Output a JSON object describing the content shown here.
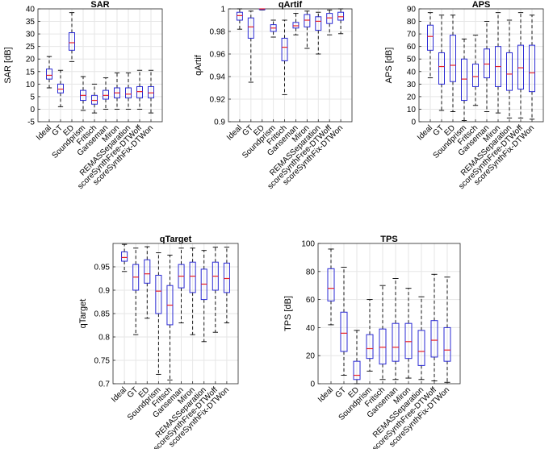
{
  "chart_data": [
    {
      "type": "box",
      "title": "SAR",
      "xlabel": "",
      "ylabel": "SAR [dB]",
      "ylim": [
        -5,
        40
      ],
      "yticks": [
        -5,
        0,
        5,
        10,
        15,
        20,
        25,
        30,
        35,
        40
      ],
      "categories": [
        "Ideal",
        "GT",
        "ED",
        "Soundprism",
        "Fritsch",
        "Ganseman",
        "Miron",
        "REMASSeparation",
        "scoreSynthFree-DTWoff",
        "scoreSynthFix-DTWon"
      ],
      "boxes": [
        {
          "min": 8.5,
          "q1": 12,
          "median": 13.5,
          "q3": 16,
          "max": 21
        },
        {
          "min": 1,
          "q1": 6.5,
          "median": 8,
          "q3": 10,
          "max": 15.5
        },
        {
          "min": 19,
          "q1": 23.5,
          "median": 26.5,
          "q3": 30.5,
          "max": 38.5
        },
        {
          "min": -0.5,
          "q1": 3.5,
          "median": 5.5,
          "q3": 7.5,
          "max": 13
        },
        {
          "min": -1.5,
          "q1": 2,
          "median": 3.5,
          "q3": 5.5,
          "max": 10
        },
        {
          "min": 0,
          "q1": 4,
          "median": 5.5,
          "q3": 7.5,
          "max": 12.5
        },
        {
          "min": 0,
          "q1": 4.5,
          "median": 6.5,
          "q3": 8.5,
          "max": 14.5
        },
        {
          "min": 0,
          "q1": 4.5,
          "median": 6,
          "q3": 8.5,
          "max": 14.5
        },
        {
          "min": 0,
          "q1": 4.5,
          "median": 7,
          "q3": 9,
          "max": 15.5
        },
        {
          "min": -1.5,
          "q1": 4.5,
          "median": 6.5,
          "q3": 9,
          "max": 15.5
        }
      ]
    },
    {
      "type": "box",
      "title": "qArtif",
      "xlabel": "",
      "ylabel": "qArtif",
      "ylim": [
        0.9,
        1
      ],
      "yticks": [
        0.9,
        0.92,
        0.94,
        0.96,
        0.98,
        1
      ],
      "categories": [
        "Ideal",
        "GT",
        "ED",
        "Soundprism",
        "Fritsch",
        "Ganseman",
        "Miron",
        "REMASSeparation",
        "scoreSynthFree-DTWoff",
        "scoreSynthFix-DTWon"
      ],
      "boxes": [
        {
          "min": 0.982,
          "q1": 0.99,
          "median": 0.994,
          "q3": 0.997,
          "max": 1.0
        },
        {
          "min": 0.935,
          "q1": 0.974,
          "median": 0.984,
          "q3": 0.992,
          "max": 0.998
        },
        {
          "min": 0.999,
          "q1": 0.9995,
          "median": 1.0,
          "q3": 1.0,
          "max": 1.0
        },
        {
          "min": 0.975,
          "q1": 0.98,
          "median": 0.983,
          "q3": 0.986,
          "max": 0.99
        },
        {
          "min": 0.924,
          "q1": 0.954,
          "median": 0.966,
          "q3": 0.974,
          "max": 0.99
        },
        {
          "min": 0.977,
          "q1": 0.983,
          "median": 0.985,
          "q3": 0.988,
          "max": 0.996
        },
        {
          "min": 0.965,
          "q1": 0.984,
          "median": 0.99,
          "q3": 0.995,
          "max": 0.998
        },
        {
          "min": 0.96,
          "q1": 0.981,
          "median": 0.989,
          "q3": 0.993,
          "max": 0.997
        },
        {
          "min": 0.977,
          "q1": 0.987,
          "median": 0.992,
          "q3": 0.996,
          "max": 0.999
        },
        {
          "min": 0.978,
          "q1": 0.99,
          "median": 0.993,
          "q3": 0.997,
          "max": 1.0
        }
      ]
    },
    {
      "type": "box",
      "title": "APS",
      "xlabel": "",
      "ylabel": "APS [dB]",
      "ylim": [
        0,
        90
      ],
      "yticks": [
        0,
        10,
        20,
        30,
        40,
        50,
        60,
        70,
        80,
        90
      ],
      "categories": [
        "Ideal",
        "GT",
        "ED",
        "Soundprism",
        "Fritsch",
        "Ganseman",
        "Miron",
        "REMASSeparation",
        "scoreSynthFree-DTWoff",
        "scoreSynthFix-DTWon"
      ],
      "boxes": [
        {
          "min": 35,
          "q1": 57,
          "median": 68,
          "q3": 77,
          "max": 87
        },
        {
          "min": 9,
          "q1": 30,
          "median": 44,
          "q3": 55,
          "max": 85
        },
        {
          "min": 8,
          "q1": 32,
          "median": 45,
          "q3": 69,
          "max": 85
        },
        {
          "min": 1,
          "q1": 17,
          "median": 34,
          "q3": 50,
          "max": 66
        },
        {
          "min": 13,
          "q1": 28,
          "median": 36,
          "q3": 46,
          "max": 69
        },
        {
          "min": 8,
          "q1": 35,
          "median": 46,
          "q3": 58,
          "max": 80
        },
        {
          "min": 7,
          "q1": 28,
          "median": 44,
          "q3": 60,
          "max": 87
        },
        {
          "min": 3,
          "q1": 25,
          "median": 38,
          "q3": 55,
          "max": 81
        },
        {
          "min": 3,
          "q1": 26,
          "median": 43,
          "q3": 61,
          "max": 87
        },
        {
          "min": 2,
          "q1": 24,
          "median": 39,
          "q3": 61,
          "max": 85
        }
      ]
    },
    {
      "type": "box",
      "title": "qTarget",
      "xlabel": "",
      "ylabel": "qTarget",
      "ylim": [
        0.7,
        1
      ],
      "yticks": [
        0.7,
        0.75,
        0.8,
        0.85,
        0.9,
        0.95
      ],
      "categories": [
        "Ideal",
        "GT",
        "ED",
        "Soundprism",
        "Fritsch",
        "Ganseman",
        "Miron",
        "REMASSeparation",
        "scoreSynthFree-DTWoff",
        "scoreSynthFix-DTWon"
      ],
      "boxes": [
        {
          "min": 0.94,
          "q1": 0.962,
          "median": 0.97,
          "q3": 0.982,
          "max": 0.998
        },
        {
          "min": 0.805,
          "q1": 0.9,
          "median": 0.928,
          "q3": 0.955,
          "max": 0.99
        },
        {
          "min": 0.84,
          "q1": 0.915,
          "median": 0.935,
          "q3": 0.965,
          "max": 0.993
        },
        {
          "min": 0.72,
          "q1": 0.85,
          "median": 0.898,
          "q3": 0.932,
          "max": 0.98
        },
        {
          "min": 0.708,
          "q1": 0.826,
          "median": 0.868,
          "q3": 0.91,
          "max": 0.975
        },
        {
          "min": 0.83,
          "q1": 0.905,
          "median": 0.93,
          "q3": 0.955,
          "max": 0.99
        },
        {
          "min": 0.805,
          "q1": 0.895,
          "median": 0.93,
          "q3": 0.96,
          "max": 0.99
        },
        {
          "min": 0.79,
          "q1": 0.88,
          "median": 0.913,
          "q3": 0.945,
          "max": 0.985
        },
        {
          "min": 0.81,
          "q1": 0.9,
          "median": 0.93,
          "q3": 0.96,
          "max": 0.992
        },
        {
          "min": 0.83,
          "q1": 0.895,
          "median": 0.925,
          "q3": 0.958,
          "max": 0.992
        }
      ]
    },
    {
      "type": "box",
      "title": "TPS",
      "xlabel": "",
      "ylabel": "TPS [dB]",
      "ylim": [
        0,
        100
      ],
      "yticks": [
        0,
        20,
        40,
        60,
        80,
        100
      ],
      "categories": [
        "Ideal",
        "GT",
        "ED",
        "Soundprism",
        "Fritsch",
        "Ganseman",
        "Miron",
        "REMASSeparation",
        "scoreSynthFree-DTWoff",
        "scoreSynthFix-DTWon"
      ],
      "boxes": [
        {
          "min": 42,
          "q1": 59,
          "median": 68,
          "q3": 82,
          "max": 96
        },
        {
          "min": 6,
          "q1": 23,
          "median": 36,
          "q3": 51,
          "max": 83
        },
        {
          "min": 0,
          "q1": 3,
          "median": 6,
          "q3": 16,
          "max": 38
        },
        {
          "min": 9,
          "q1": 18,
          "median": 25,
          "q3": 35,
          "max": 60
        },
        {
          "min": 3,
          "q1": 14,
          "median": 26,
          "q3": 39,
          "max": 70
        },
        {
          "min": 3,
          "q1": 16,
          "median": 26,
          "q3": 43,
          "max": 75
        },
        {
          "min": 4,
          "q1": 18,
          "median": 30,
          "q3": 43,
          "max": 68
        },
        {
          "min": 3,
          "q1": 13,
          "median": 23,
          "q3": 38,
          "max": 62
        },
        {
          "min": 2,
          "q1": 19,
          "median": 31,
          "q3": 45,
          "max": 78
        },
        {
          "min": 1,
          "q1": 16,
          "median": 24,
          "q3": 40,
          "max": 76
        }
      ]
    }
  ]
}
